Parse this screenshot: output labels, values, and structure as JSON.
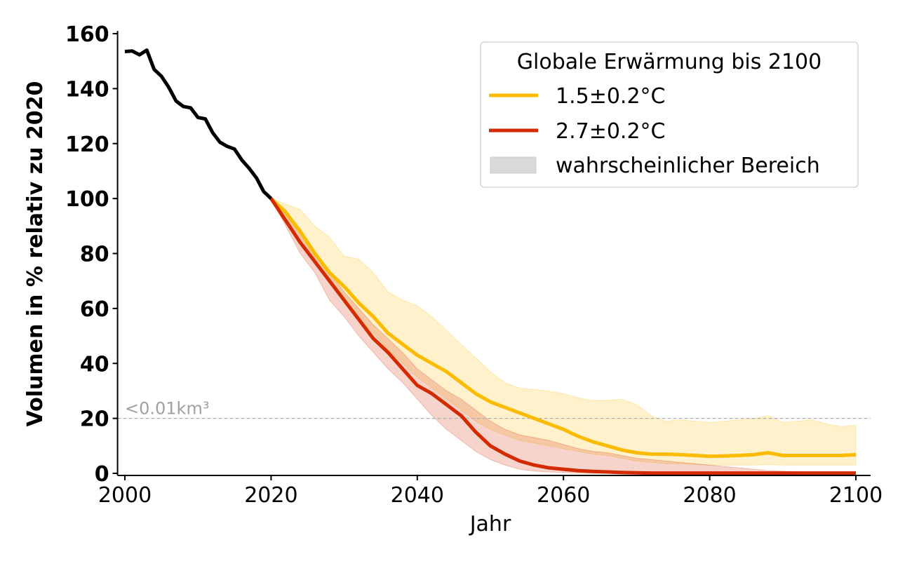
{
  "chart_data": {
    "type": "line",
    "title": "",
    "xlabel": "Jahr",
    "ylabel": "Volumen in % relativ zu 2020",
    "xlim": [
      1999,
      2102
    ],
    "ylim": [
      0,
      161
    ],
    "xticks": [
      2000,
      2020,
      2040,
      2060,
      2080,
      2100
    ],
    "xtick_labels": [
      "2000",
      "2020",
      "2040",
      "2060",
      "2080",
      "2100"
    ],
    "yticks": [
      0,
      20,
      40,
      60,
      80,
      100,
      120,
      140,
      160
    ],
    "ytick_labels": [
      "0",
      "20",
      "40",
      "60",
      "80",
      "100",
      "120",
      "140",
      "160"
    ],
    "grid": false,
    "reference_line": {
      "y": 20,
      "label": "<0.01km³",
      "style": "dashed",
      "color": "#b0b0b0"
    },
    "legend": {
      "title": "Globale Erwärmung bis 2100",
      "placement": "top-right",
      "entries": [
        {
          "label": "1.5±0.2°C",
          "type": "line",
          "color": "#fbbb00"
        },
        {
          "label": "2.7±0.2°C",
          "type": "line",
          "color": "#d42a00"
        },
        {
          "label": "wahrscheinlicher Bereich",
          "type": "patch",
          "color": "#d9d9d9"
        }
      ]
    },
    "series": [
      {
        "name": "historical",
        "color": "#000000",
        "x": [
          2000,
          2001,
          2002,
          2003,
          2004,
          2005,
          2006,
          2007,
          2008,
          2009,
          2010,
          2011,
          2012,
          2013,
          2014,
          2015,
          2016,
          2017,
          2018,
          2019,
          2020
        ],
        "values": [
          153.5,
          153.7,
          152.3,
          154,
          147,
          144.5,
          140.5,
          135.5,
          133.5,
          133,
          129.5,
          129,
          124,
          120.5,
          119,
          118,
          114,
          111,
          107.5,
          102.5,
          100
        ]
      },
      {
        "name": "1.5±0.2°C",
        "color": "#fbbb00",
        "x": [
          2020,
          2022,
          2024,
          2026,
          2028,
          2030,
          2032,
          2034,
          2036,
          2038,
          2040,
          2042,
          2044,
          2046,
          2048,
          2050,
          2052,
          2054,
          2056,
          2058,
          2060,
          2062,
          2064,
          2066,
          2068,
          2070,
          2072,
          2074,
          2076,
          2078,
          2080,
          2082,
          2084,
          2086,
          2088,
          2090,
          2092,
          2094,
          2096,
          2098,
          2100
        ],
        "values": [
          100,
          95,
          88,
          80,
          73,
          68,
          62,
          57,
          51,
          47,
          43,
          40,
          37,
          33,
          29,
          26,
          24,
          22,
          20,
          18,
          16,
          13.5,
          11.5,
          10,
          8.5,
          7.5,
          7,
          7,
          6.8,
          6.5,
          6.2,
          6.3,
          6.5,
          6.8,
          7.5,
          6.5,
          6.5,
          6.5,
          6.5,
          6.5,
          6.8
        ],
        "range_low": [
          100,
          93,
          86,
          77,
          69,
          63,
          56,
          51,
          45,
          40,
          35,
          31,
          27,
          23,
          19,
          16,
          14,
          12,
          11,
          10,
          9,
          8,
          7,
          6.5,
          5.5,
          4.5,
          4,
          3.5,
          3.5,
          3.3,
          3,
          3,
          3,
          3,
          3.2,
          3,
          3,
          3,
          3,
          3,
          3
        ],
        "range_high": [
          100,
          98,
          96,
          90,
          86,
          79,
          78,
          73,
          66,
          63,
          61,
          57,
          52,
          47,
          42,
          37,
          33,
          31,
          30.5,
          30,
          29,
          27.5,
          26.5,
          26.5,
          27,
          25,
          21,
          19,
          19.5,
          19,
          18.5,
          19,
          19.5,
          20,
          21,
          18.5,
          19,
          19.5,
          18,
          17,
          17.5
        ]
      },
      {
        "name": "2.7±0.2°C",
        "color": "#d42a00",
        "x": [
          2020,
          2022,
          2024,
          2026,
          2028,
          2030,
          2032,
          2034,
          2036,
          2038,
          2040,
          2042,
          2044,
          2046,
          2048,
          2050,
          2052,
          2054,
          2056,
          2058,
          2060,
          2062,
          2064,
          2066,
          2068,
          2070,
          2072,
          2074,
          2076,
          2078,
          2080,
          2082,
          2084,
          2086,
          2088,
          2090,
          2092,
          2094,
          2096,
          2098,
          2100
        ],
        "values": [
          100,
          92,
          84,
          77,
          70,
          63,
          56,
          49,
          44,
          38,
          32,
          29,
          25,
          21,
          15,
          10,
          7,
          4.5,
          3,
          2,
          1.5,
          1,
          0.7,
          0.5,
          0.3,
          0.2,
          0.1,
          0.1,
          0.1,
          0.1,
          0.1,
          0.1,
          0.1,
          0.1,
          0.1,
          0.1,
          0.1,
          0.1,
          0.1,
          0.1,
          0.1
        ],
        "range_low": [
          100,
          90,
          80,
          73,
          63,
          57,
          50,
          44,
          38,
          33,
          27,
          21,
          16,
          12,
          8,
          5,
          3,
          1.5,
          0.8,
          0.5,
          0.3,
          0.1,
          0,
          0,
          0,
          0,
          0,
          0,
          0,
          0,
          0,
          0,
          0,
          0,
          0,
          0,
          0,
          0,
          0,
          0,
          0
        ],
        "range_high": [
          100,
          96,
          88,
          80,
          73,
          66,
          60,
          54,
          49,
          44,
          38,
          34,
          30,
          27,
          23,
          19,
          16,
          14,
          13,
          12,
          10.5,
          9,
          8,
          7.5,
          6.5,
          5.5,
          5,
          4.5,
          4,
          3.5,
          3,
          2.5,
          2,
          1.5,
          1,
          0.8,
          0.6,
          0.5,
          0.4,
          0.3,
          0.2
        ]
      }
    ]
  }
}
